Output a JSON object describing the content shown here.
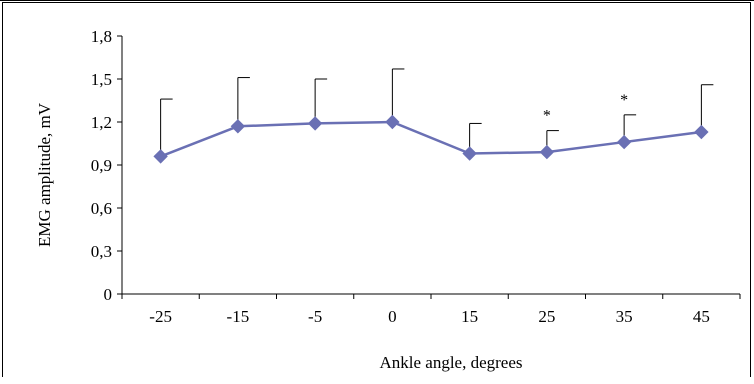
{
  "chart_data": {
    "type": "line",
    "categories": [
      "-25",
      "-15",
      "-5",
      "0",
      "15",
      "25",
      "35",
      "45"
    ],
    "series": [
      {
        "values": [
          0.96,
          1.17,
          1.19,
          1.2,
          0.98,
          0.99,
          1.06,
          1.13
        ],
        "error_upper": [
          1.36,
          1.51,
          1.5,
          1.57,
          1.19,
          1.14,
          1.25,
          1.46
        ],
        "color": "#6a70b4"
      }
    ],
    "significance": [
      "",
      "",
      "",
      "",
      "",
      "*",
      "*",
      ""
    ],
    "xlabel": "Ankle angle, degrees",
    "ylabel": "EMG amplitude, mV",
    "ylim": [
      0,
      1.8
    ],
    "yticks": [
      "0",
      "0,3",
      "0,6",
      "0,9",
      "1,2",
      "1,5",
      "1,8"
    ],
    "ytick_values": [
      0,
      0.3,
      0.6,
      0.9,
      1.2,
      1.5,
      1.8
    ],
    "grid": false,
    "legend": "none"
  }
}
